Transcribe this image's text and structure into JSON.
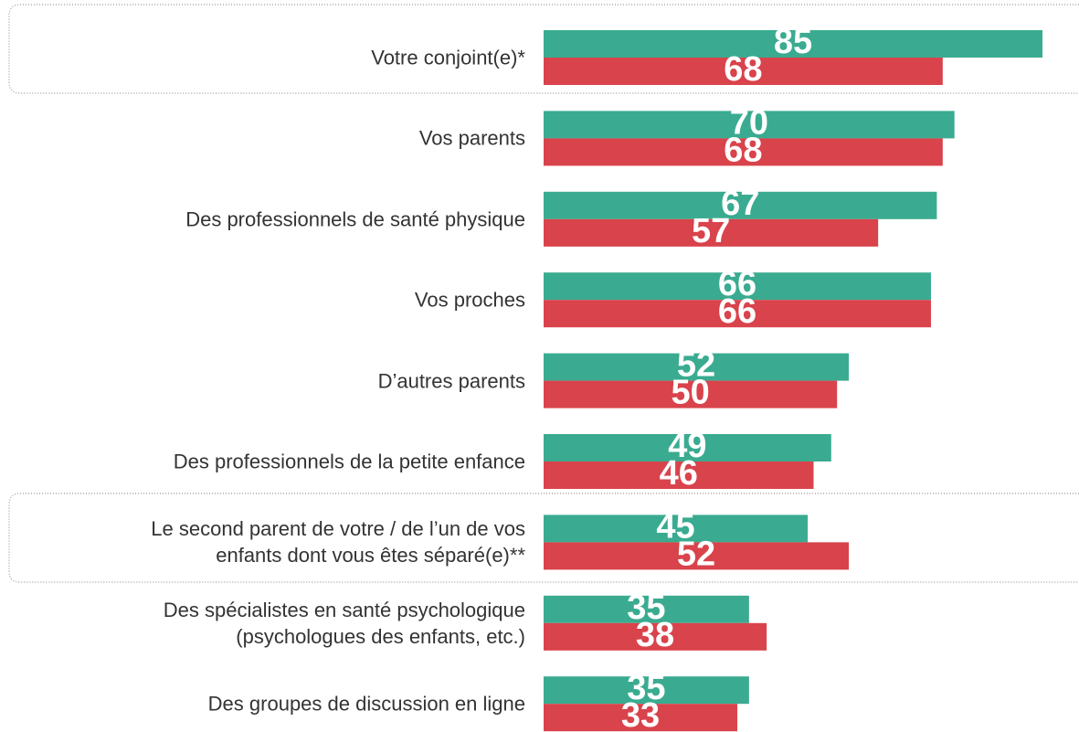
{
  "chart_data": {
    "type": "bar",
    "orientation": "horizontal",
    "categories": [
      "Votre conjoint(e)*",
      "Vos parents",
      "Des professionnels de santé physique",
      "Vos proches",
      "D’autres parents",
      "Des professionnels de la petite enfance",
      "Le second parent de votre / de l’un de vos\nenfants dont vous êtes séparé(e)**",
      "Des spécialistes en santé psychologique\n(psychologues des enfants, etc.)",
      "Des groupes de discussion en ligne"
    ],
    "series": [
      {
        "color": "#3aab90",
        "values": [
          85,
          70,
          67,
          66,
          52,
          49,
          45,
          35,
          35
        ]
      },
      {
        "color": "#d9434b",
        "values": [
          68,
          68,
          57,
          66,
          50,
          46,
          52,
          38,
          33
        ]
      }
    ]
  }
}
